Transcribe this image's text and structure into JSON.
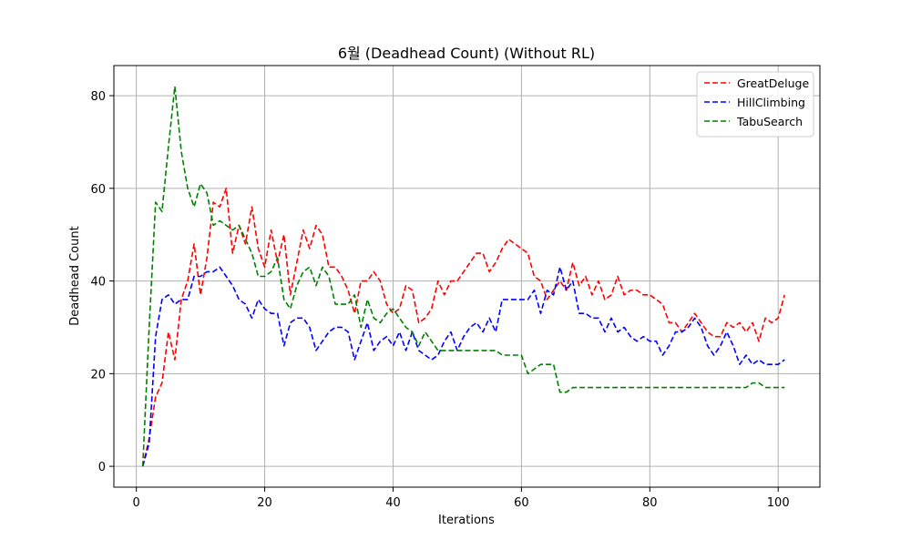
{
  "chart_data": {
    "type": "line",
    "title": "6월 (Deadhead Count) (Without RL)",
    "xlabel": "Iterations",
    "ylabel": "Deadhead Count",
    "xlim": [
      -3.5,
      106.5
    ],
    "ylim": [
      -4.5,
      86.5
    ],
    "xticks": [
      0,
      20,
      40,
      60,
      80,
      100
    ],
    "yticks": [
      0,
      20,
      40,
      60,
      80
    ],
    "grid": true,
    "legend_position": "top-right",
    "line_style": "dashed",
    "x": [
      1,
      2,
      3,
      4,
      5,
      6,
      7,
      8,
      9,
      10,
      11,
      12,
      13,
      14,
      15,
      16,
      17,
      18,
      19,
      20,
      21,
      22,
      23,
      24,
      25,
      26,
      27,
      28,
      29,
      30,
      31,
      32,
      33,
      34,
      35,
      36,
      37,
      38,
      39,
      40,
      41,
      42,
      43,
      44,
      45,
      46,
      47,
      48,
      49,
      50,
      51,
      52,
      53,
      54,
      55,
      56,
      57,
      58,
      59,
      60,
      61,
      62,
      63,
      64,
      65,
      66,
      67,
      68,
      69,
      70,
      71,
      72,
      73,
      74,
      75,
      76,
      77,
      78,
      79,
      80,
      81,
      82,
      83,
      84,
      85,
      86,
      87,
      88,
      89,
      90,
      91,
      92,
      93,
      94,
      95,
      96,
      97,
      98,
      99,
      100,
      101
    ],
    "series": [
      {
        "name": "GreatDeluge",
        "color": "#ff0000",
        "values": [
          0,
          6,
          15,
          18,
          29,
          23,
          36,
          40,
          48,
          37,
          45,
          57,
          56,
          60,
          46,
          52,
          48,
          56,
          47,
          43,
          51,
          44,
          50,
          37,
          44,
          51,
          47,
          52,
          50,
          43,
          43,
          41,
          38,
          33,
          40,
          40,
          42,
          40,
          35,
          33,
          34,
          39,
          38,
          31,
          32,
          34,
          40,
          37,
          40,
          40,
          42,
          44,
          46,
          46,
          42,
          44,
          47,
          49,
          48,
          47,
          46,
          41,
          40,
          36,
          38,
          40,
          38,
          44,
          39,
          41,
          37,
          40,
          36,
          37,
          41,
          37,
          38,
          38,
          37,
          37,
          36,
          35,
          31,
          31,
          29,
          31,
          33,
          31,
          29,
          28,
          28,
          31,
          30,
          31,
          29,
          31,
          27,
          32,
          31,
          32,
          37
        ]
      },
      {
        "name": "HillClimbing",
        "color": "#0000ff",
        "values": [
          0,
          5,
          28,
          36,
          37,
          35,
          36,
          36,
          41,
          41,
          42,
          42,
          43,
          41,
          39,
          36,
          35,
          32,
          36,
          34,
          33,
          33,
          26,
          31,
          32,
          32,
          30,
          25,
          27,
          29,
          30,
          30,
          29,
          23,
          27,
          31,
          25,
          27,
          28,
          26,
          29,
          25,
          29,
          25,
          24,
          23,
          24,
          27,
          29,
          25,
          28,
          30,
          31,
          29,
          32,
          29,
          36,
          36,
          36,
          36,
          36,
          38,
          33,
          38,
          37,
          43,
          38,
          40,
          33,
          33,
          32,
          32,
          29,
          32,
          29,
          30,
          28,
          27,
          28,
          27,
          27,
          24,
          26,
          29,
          29,
          30,
          32,
          30,
          26,
          24,
          26,
          29,
          26,
          22,
          24,
          22,
          23,
          22,
          22,
          22,
          23
        ]
      },
      {
        "name": "TabuSearch",
        "color": "#008000",
        "values": [
          0,
          30,
          57,
          55,
          69,
          82,
          68,
          60,
          56,
          61,
          59,
          52,
          53,
          52,
          51,
          52,
          49,
          46,
          41,
          41,
          42,
          45,
          36,
          34,
          39,
          42,
          43,
          39,
          43,
          41,
          35,
          35,
          35,
          37,
          30,
          36,
          32,
          31,
          33,
          34,
          32,
          30,
          29,
          26,
          29,
          27,
          25,
          25,
          25,
          25,
          25,
          25,
          25,
          25,
          25,
          25,
          24,
          24,
          24,
          24,
          20,
          21,
          22,
          22,
          22,
          16,
          16,
          17,
          17,
          17,
          17,
          17,
          17,
          17,
          17,
          17,
          17,
          17,
          17,
          17,
          17,
          17,
          17,
          17,
          17,
          17,
          17,
          17,
          17,
          17,
          17,
          17,
          17,
          17,
          17,
          18,
          18,
          17,
          17,
          17,
          17
        ]
      }
    ]
  }
}
